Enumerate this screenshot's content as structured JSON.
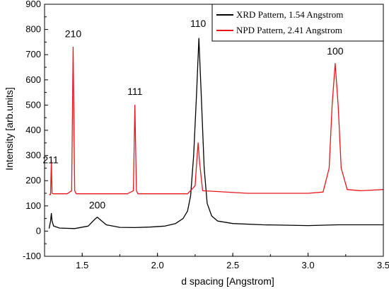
{
  "chart_data": {
    "type": "line",
    "xlabel": "d spacing [Angstrom]",
    "ylabel": "Intensity [arb.units]",
    "xlim": [
      1.25,
      3.5
    ],
    "ylim": [
      -100,
      900
    ],
    "xticks": [
      "1.5",
      "2.0",
      "2.5",
      "3.0",
      "3.5"
    ],
    "yticks": [
      "-100",
      "0",
      "100",
      "200",
      "300",
      "400",
      "500",
      "600",
      "700",
      "800",
      "900"
    ],
    "legend_position": "top-right",
    "series": [
      {
        "name": "XRD Pattern, 1.54 Angstrom",
        "color": "#000000",
        "x": [
          1.28,
          1.29,
          1.295,
          1.3,
          1.31,
          1.35,
          1.45,
          1.54,
          1.58,
          1.6,
          1.62,
          1.66,
          1.75,
          1.85,
          1.95,
          2.05,
          2.12,
          2.17,
          2.2,
          2.22,
          2.24,
          2.26,
          2.275,
          2.29,
          2.31,
          2.33,
          2.36,
          2.4,
          2.5,
          2.7,
          3.0,
          3.2,
          3.5
        ],
        "y": [
          10,
          40,
          70,
          40,
          20,
          12,
          10,
          20,
          45,
          55,
          45,
          25,
          15,
          14,
          16,
          20,
          30,
          50,
          80,
          140,
          300,
          550,
          765,
          550,
          250,
          110,
          60,
          40,
          30,
          25,
          22,
          25,
          25
        ]
      },
      {
        "name": "NPD Pattern, 2.41 Angstrom",
        "color": "#e8161b",
        "x": [
          1.28,
          1.29,
          1.295,
          1.3,
          1.31,
          1.4,
          1.43,
          1.44,
          1.45,
          1.46,
          1.6,
          1.8,
          1.84,
          1.85,
          1.86,
          1.87,
          2.0,
          2.2,
          2.25,
          2.26,
          2.27,
          2.28,
          2.3,
          2.6,
          3.0,
          3.1,
          3.14,
          3.16,
          3.18,
          3.2,
          3.22,
          3.26,
          3.35,
          3.5
        ],
        "y": [
          145,
          145,
          280,
          150,
          148,
          148,
          160,
          730,
          160,
          148,
          148,
          148,
          160,
          500,
          160,
          148,
          148,
          148,
          180,
          270,
          350,
          270,
          160,
          150,
          150,
          155,
          250,
          500,
          665,
          500,
          250,
          165,
          160,
          165
        ]
      }
    ],
    "annotations": [
      {
        "text": "211",
        "x": 1.29,
        "y": 270
      },
      {
        "text": "210",
        "x": 1.44,
        "y": 770
      },
      {
        "text": "111",
        "x": 1.85,
        "y": 540
      },
      {
        "text": "200",
        "x": 1.6,
        "y": 90
      },
      {
        "text": "110",
        "x": 2.27,
        "y": 810
      },
      {
        "text": "100",
        "x": 3.18,
        "y": 700
      }
    ]
  }
}
